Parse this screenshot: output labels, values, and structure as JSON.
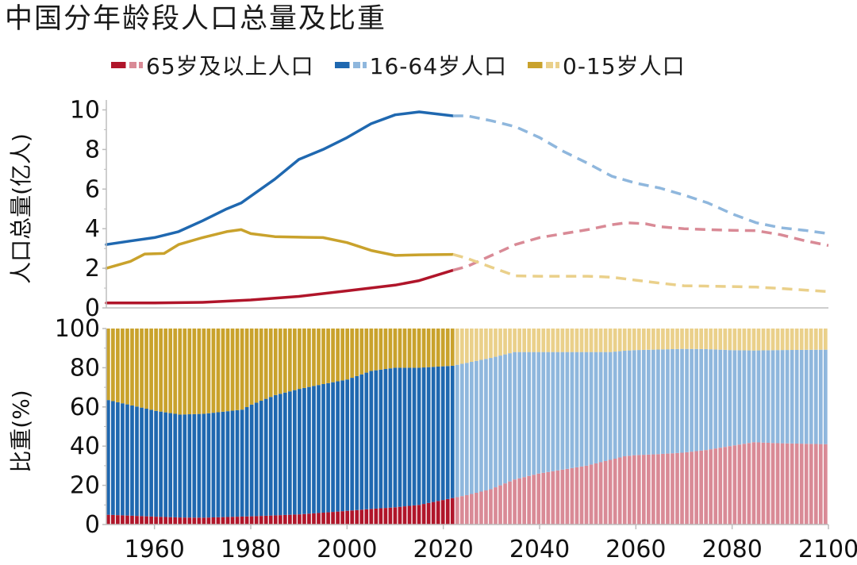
{
  "chart_data": {
    "title": "中国分年龄段人口总量及比重",
    "colors": {
      "old": "#b0152a",
      "old_proj": "#d98a96",
      "working": "#1f68b0",
      "working_proj": "#8fb7dd",
      "young": "#c9a22c",
      "young_proj": "#ead08a"
    },
    "legend": [
      {
        "label": "65岁及以上人口",
        "color": "#b0152a",
        "proj_color": "#d98a96"
      },
      {
        "label": "16-64岁人口",
        "color": "#1f68b0",
        "proj_color": "#8fb7dd"
      },
      {
        "label": "0-15岁人口",
        "color": "#c9a22c",
        "proj_color": "#ead08a"
      }
    ],
    "charts": [
      {
        "type": "line",
        "ylabel": "人口总量(亿人)",
        "ylim": [
          0,
          10.5
        ],
        "yticks": [
          0,
          2,
          4,
          6,
          8,
          10
        ],
        "split_year": 2022,
        "series": [
          {
            "name": "65岁及以上人口",
            "key": "old",
            "points": [
              [
                1950,
                0.25
              ],
              [
                1960,
                0.25
              ],
              [
                1970,
                0.28
              ],
              [
                1980,
                0.4
              ],
              [
                1990,
                0.58
              ],
              [
                2000,
                0.86
              ],
              [
                2010,
                1.15
              ],
              [
                2015,
                1.38
              ],
              [
                2022,
                1.9
              ],
              [
                2025,
                2.1
              ],
              [
                2030,
                2.65
              ],
              [
                2035,
                3.2
              ],
              [
                2040,
                3.55
              ],
              [
                2045,
                3.75
              ],
              [
                2050,
                3.95
              ],
              [
                2055,
                4.2
              ],
              [
                2058,
                4.3
              ],
              [
                2062,
                4.25
              ],
              [
                2065,
                4.1
              ],
              [
                2070,
                4.0
              ],
              [
                2075,
                3.95
              ],
              [
                2080,
                3.92
              ],
              [
                2085,
                3.9
              ],
              [
                2090,
                3.7
              ],
              [
                2095,
                3.4
              ],
              [
                2100,
                3.15
              ]
            ]
          },
          {
            "name": "16-64岁人口",
            "key": "working",
            "points": [
              [
                1950,
                3.2
              ],
              [
                1955,
                3.38
              ],
              [
                1960,
                3.55
              ],
              [
                1965,
                3.85
              ],
              [
                1970,
                4.4
              ],
              [
                1975,
                5.0
              ],
              [
                1978,
                5.3
              ],
              [
                1985,
                6.5
              ],
              [
                1990,
                7.5
              ],
              [
                1995,
                8.0
              ],
              [
                2000,
                8.6
              ],
              [
                2005,
                9.3
              ],
              [
                2010,
                9.75
              ],
              [
                2015,
                9.9
              ],
              [
                2022,
                9.7
              ],
              [
                2025,
                9.7
              ],
              [
                2030,
                9.45
              ],
              [
                2035,
                9.15
              ],
              [
                2040,
                8.6
              ],
              [
                2045,
                7.9
              ],
              [
                2050,
                7.3
              ],
              [
                2055,
                6.65
              ],
              [
                2060,
                6.3
              ],
              [
                2065,
                6.05
              ],
              [
                2070,
                5.7
              ],
              [
                2075,
                5.3
              ],
              [
                2080,
                4.75
              ],
              [
                2085,
                4.3
              ],
              [
                2090,
                4.05
              ],
              [
                2095,
                3.92
              ],
              [
                2100,
                3.75
              ]
            ]
          },
          {
            "name": "0-15岁人口",
            "key": "young",
            "points": [
              [
                1950,
                2.0
              ],
              [
                1955,
                2.35
              ],
              [
                1958,
                2.72
              ],
              [
                1962,
                2.75
              ],
              [
                1965,
                3.2
              ],
              [
                1970,
                3.55
              ],
              [
                1975,
                3.85
              ],
              [
                1978,
                3.95
              ],
              [
                1980,
                3.75
              ],
              [
                1985,
                3.6
              ],
              [
                1990,
                3.57
              ],
              [
                1995,
                3.55
              ],
              [
                2000,
                3.3
              ],
              [
                2005,
                2.9
              ],
              [
                2010,
                2.65
              ],
              [
                2015,
                2.68
              ],
              [
                2022,
                2.7
              ],
              [
                2025,
                2.5
              ],
              [
                2030,
                2.05
              ],
              [
                2035,
                1.62
              ],
              [
                2040,
                1.6
              ],
              [
                2045,
                1.6
              ],
              [
                2050,
                1.6
              ],
              [
                2055,
                1.55
              ],
              [
                2060,
                1.4
              ],
              [
                2065,
                1.25
              ],
              [
                2070,
                1.12
              ],
              [
                2075,
                1.1
              ],
              [
                2080,
                1.08
              ],
              [
                2085,
                1.05
              ],
              [
                2090,
                0.98
              ],
              [
                2095,
                0.9
              ],
              [
                2100,
                0.82
              ]
            ]
          }
        ]
      },
      {
        "type": "bar",
        "stacked": true,
        "ylabel": "比重(%)",
        "ylim": [
          0,
          100
        ],
        "yticks": [
          0,
          20,
          40,
          60,
          80,
          100
        ],
        "split_year": 2022,
        "year_range": [
          1950,
          2100
        ],
        "series": [
          {
            "name": "65岁及以上人口",
            "key": "old",
            "points": [
              [
                1950,
                5
              ],
              [
                1960,
                4
              ],
              [
                1965,
                3.6
              ],
              [
                1970,
                3.5
              ],
              [
                1980,
                4.2
              ],
              [
                1990,
                5.2
              ],
              [
                2000,
                7
              ],
              [
                2010,
                8.8
              ],
              [
                2015,
                10
              ],
              [
                2022,
                13.5
              ],
              [
                2025,
                15
              ],
              [
                2030,
                18
              ],
              [
                2035,
                23
              ],
              [
                2040,
                26
              ],
              [
                2045,
                28
              ],
              [
                2050,
                30
              ],
              [
                2055,
                33
              ],
              [
                2058,
                35
              ],
              [
                2065,
                36
              ],
              [
                2075,
                38
              ],
              [
                2080,
                40
              ],
              [
                2085,
                42
              ],
              [
                2090,
                41.5
              ],
              [
                2100,
                41
              ]
            ]
          },
          {
            "name": "16-64岁人口",
            "key": "working",
            "points": [
              [
                1950,
                58.5
              ],
              [
                1960,
                54
              ],
              [
                1965,
                52.5
              ],
              [
                1970,
                53
              ],
              [
                1978,
                54.3
              ],
              [
                1980,
                57
              ],
              [
                1985,
                61.5
              ],
              [
                1990,
                64
              ],
              [
                1995,
                66
              ],
              [
                2000,
                67
              ],
              [
                2005,
                70
              ],
              [
                2010,
                71.2
              ],
              [
                2015,
                70
              ],
              [
                2022,
                67.5
              ],
              [
                2025,
                67.5
              ],
              [
                2030,
                67
              ],
              [
                2035,
                65
              ],
              [
                2040,
                62
              ],
              [
                2045,
                60
              ],
              [
                2050,
                58
              ],
              [
                2055,
                55
              ],
              [
                2060,
                53.5
              ],
              [
                2070,
                53.5
              ],
              [
                2075,
                51.5
              ],
              [
                2080,
                49
              ],
              [
                2085,
                46.8
              ],
              [
                2090,
                47.5
              ],
              [
                2100,
                48.2
              ]
            ]
          },
          {
            "name": "0-15岁人口",
            "key": "young",
            "points": [
              [
                1950,
                36.5
              ],
              [
                1960,
                42
              ],
              [
                1965,
                43.9
              ],
              [
                1970,
                43.5
              ],
              [
                1978,
                41.2
              ],
              [
                1980,
                38.8
              ],
              [
                1985,
                34
              ],
              [
                1990,
                30.8
              ],
              [
                1995,
                28.5
              ],
              [
                2000,
                26
              ],
              [
                2005,
                21.5
              ],
              [
                2010,
                20
              ],
              [
                2015,
                20
              ],
              [
                2022,
                19
              ],
              [
                2025,
                17.5
              ],
              [
                2030,
                15
              ],
              [
                2035,
                12
              ],
              [
                2040,
                12
              ],
              [
                2045,
                12
              ],
              [
                2050,
                12
              ],
              [
                2055,
                12
              ],
              [
                2060,
                11
              ],
              [
                2070,
                10.5
              ],
              [
                2075,
                10.5
              ],
              [
                2080,
                11
              ],
              [
                2085,
                11.2
              ],
              [
                2090,
                11
              ],
              [
                2100,
                10.8
              ]
            ]
          }
        ]
      }
    ],
    "xaxis": {
      "range": [
        1950,
        2100
      ],
      "ticks": [
        1960,
        1980,
        2000,
        2020,
        2040,
        2060,
        2080,
        2100
      ]
    }
  }
}
